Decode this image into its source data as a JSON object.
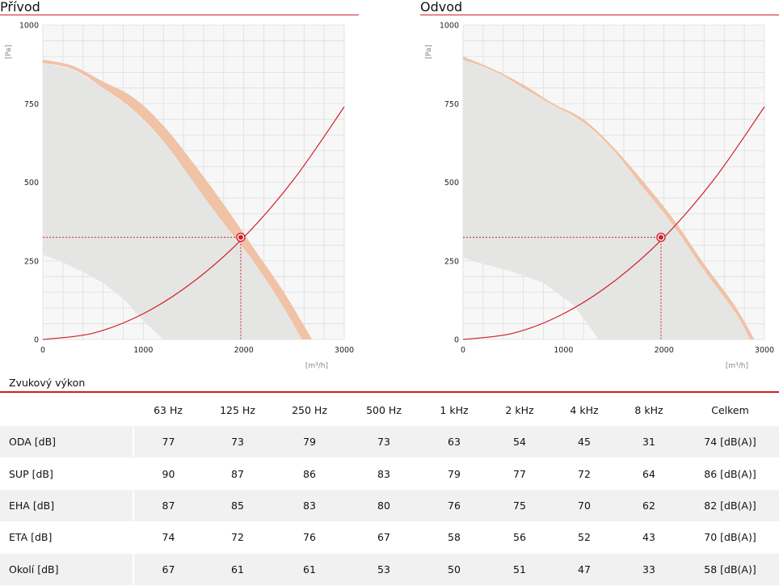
{
  "charts": {
    "supply": {
      "title": "Přívod",
      "ylabel": "[Pa]",
      "xlabel": "[m³/h]"
    },
    "exhaust": {
      "title": "Odvod",
      "ylabel": "[Pa]",
      "xlabel": "[m³/h]"
    }
  },
  "chart_data": [
    {
      "type": "line",
      "title": "Přívod",
      "xlabel": "[m³/h]",
      "ylabel": "[Pa]",
      "xlim": [
        0,
        3000
      ],
      "ylim": [
        0,
        1000
      ],
      "xticks": [
        0,
        1000,
        2000,
        3000
      ],
      "yticks": [
        0,
        250,
        500,
        750,
        1000
      ],
      "grid": true,
      "series": [
        {
          "role": "fan_curve_upper",
          "x": [
            0,
            300,
            600,
            900,
            1200,
            1500,
            1800,
            2100,
            2400,
            2680
          ],
          "y": [
            890,
            870,
            820,
            770,
            680,
            560,
            430,
            290,
            150,
            0
          ]
        },
        {
          "role": "fan_curve_lower",
          "x": [
            0,
            300,
            600,
            900,
            1200,
            1500,
            1800,
            2000,
            2200,
            2400,
            2580
          ],
          "y": [
            880,
            860,
            800,
            730,
            630,
            500,
            370,
            290,
            200,
            100,
            0
          ]
        },
        {
          "role": "operating_area",
          "x": [
            0,
            300,
            600,
            900,
            1200,
            1500,
            1800,
            2000,
            2200,
            2400,
            2580,
            1200,
            1000,
            800,
            600,
            400,
            200,
            0
          ],
          "y": [
            880,
            860,
            800,
            730,
            630,
            500,
            370,
            290,
            200,
            100,
            0,
            0,
            60,
            130,
            180,
            215,
            245,
            270
          ]
        },
        {
          "role": "system_curve",
          "x": [
            0,
            500,
            1000,
            1500,
            2000,
            2500,
            3000
          ],
          "y": [
            0,
            20,
            82,
            184,
            325,
            510,
            740
          ]
        }
      ],
      "operating_point": {
        "x": 1970,
        "y": 325
      }
    },
    {
      "type": "line",
      "title": "Odvod",
      "xlabel": "[m³/h]",
      "ylabel": "[Pa]",
      "xlim": [
        0,
        3000
      ],
      "ylim": [
        0,
        1000
      ],
      "xticks": [
        0,
        1000,
        2000,
        3000
      ],
      "yticks": [
        0,
        250,
        500,
        750,
        1000
      ],
      "grid": true,
      "series": [
        {
          "role": "fan_curve_upper",
          "x": [
            0,
            300,
            600,
            900,
            1200,
            1500,
            1800,
            2100,
            2400,
            2700,
            2900
          ],
          "y": [
            900,
            860,
            810,
            750,
            700,
            610,
            500,
            380,
            240,
            110,
            0
          ]
        },
        {
          "role": "fan_curve_lower",
          "x": [
            0,
            300,
            600,
            900,
            1200,
            1500,
            1800,
            2100,
            2400,
            2700,
            2860
          ],
          "y": [
            890,
            855,
            800,
            745,
            690,
            600,
            480,
            360,
            220,
            90,
            0
          ]
        },
        {
          "role": "operating_area",
          "x": [
            0,
            300,
            600,
            900,
            1200,
            1500,
            1800,
            2100,
            2400,
            2700,
            2860,
            1350,
            1100,
            800,
            500,
            200,
            0
          ],
          "y": [
            890,
            855,
            800,
            745,
            690,
            600,
            480,
            360,
            220,
            90,
            0,
            0,
            110,
            180,
            215,
            240,
            260
          ]
        },
        {
          "role": "system_curve",
          "x": [
            0,
            500,
            1000,
            1500,
            2000,
            2500,
            3000
          ],
          "y": [
            0,
            20,
            82,
            184,
            325,
            510,
            740
          ]
        }
      ],
      "operating_point": {
        "x": 1970,
        "y": 325
      }
    }
  ],
  "sound": {
    "title": "Zvukový výkon",
    "headers": [
      "",
      "63 Hz",
      "125 Hz",
      "250 Hz",
      "500 Hz",
      "1 kHz",
      "2 kHz",
      "4 kHz",
      "8 kHz",
      "Celkem"
    ],
    "rows": [
      [
        "ODA [dB]",
        "77",
        "73",
        "79",
        "73",
        "63",
        "54",
        "45",
        "31",
        "74 [dB(A)]"
      ],
      [
        "SUP [dB]",
        "90",
        "87",
        "86",
        "83",
        "79",
        "77",
        "72",
        "64",
        "86 [dB(A)]"
      ],
      [
        "EHA [dB]",
        "87",
        "85",
        "83",
        "80",
        "76",
        "75",
        "70",
        "62",
        "82 [dB(A)]"
      ],
      [
        "ETA [dB]",
        "74",
        "72",
        "76",
        "67",
        "58",
        "56",
        "52",
        "43",
        "70 [dB(A)]"
      ],
      [
        "Okolí [dB]",
        "67",
        "61",
        "61",
        "53",
        "50",
        "51",
        "47",
        "33",
        "58 [dB(A)]"
      ]
    ]
  },
  "colors": {
    "accent": "#d0202a",
    "fan_band": "#f0c2a6",
    "operating_area": "#e5e5e4",
    "plot_bg": "#f7f7f7",
    "grid": "#dedede"
  }
}
